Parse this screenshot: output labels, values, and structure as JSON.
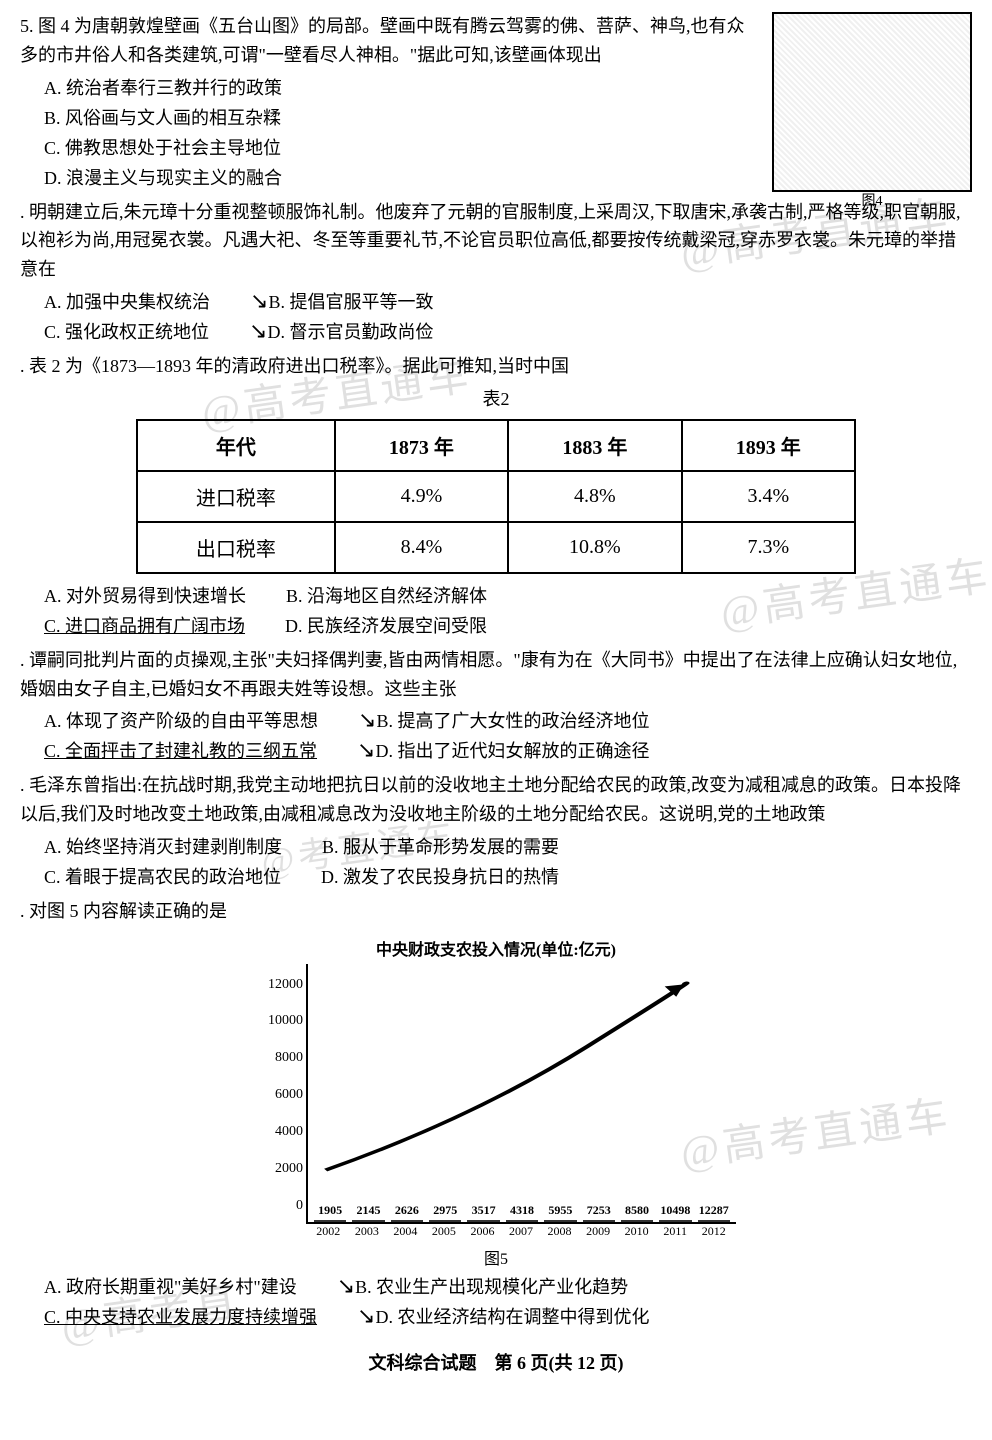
{
  "watermarks": {
    "w1": "@高考直通车",
    "w2": "@高考直通车",
    "w3": "@高考直通车",
    "w4": "@高考直通车",
    "w5": "@高考直"
  },
  "q6": {
    "text": "5. 图 4 为唐朝敦煌壁画《五台山图》的局部。壁画中既有腾云驾雾的佛、菩萨、神鸟,也有众多的市井俗人和各类建筑,可谓\"一壁看尽人神相。\"据此可知,该壁画体现出",
    "optA": "A. 统治者奉行三教并行的政策",
    "optB": "B. 风俗画与文人画的相互杂糅",
    "optC": "C. 佛教思想处于社会主导地位",
    "optD": "D. 浪漫主义与现实主义的融合",
    "figLabel": "图4"
  },
  "q7": {
    "text": ". 明朝建立后,朱元璋十分重视整顿服饰礼制。他废弃了元朝的官服制度,上采周汉,下取唐宋,承袭古制,严格等级,职官朝服,以袍衫为尚,用冠冕衣裳。凡遇大祀、冬至等重要礼节,不论官员职位高低,都要按传统戴梁冠,穿赤罗衣裳。朱元璋的举措意在",
    "optA": "A. 加强中央集权统治",
    "optB": "B. 提倡官服平等一致",
    "optC": "C. 强化政权正统地位",
    "optD": "D. 督示官员勤政尚俭"
  },
  "q8": {
    "text": ". 表 2 为《1873—1893 年的清政府进出口税率》。据此可推知,当时中国",
    "tableCaption": "表2",
    "table": {
      "columns": [
        "年代",
        "1873 年",
        "1883 年",
        "1893 年"
      ],
      "rows": [
        [
          "进口税率",
          "4.9%",
          "4.8%",
          "3.4%"
        ],
        [
          "出口税率",
          "8.4%",
          "10.8%",
          "7.3%"
        ]
      ],
      "border_color": "#000000",
      "cell_fontsize": 20
    },
    "optA": "A. 对外贸易得到快速增长",
    "optB": "B. 沿海地区自然经济解体",
    "optC": "C. 进口商品拥有广阔市场",
    "optD": "D. 民族经济发展空间受限"
  },
  "q9": {
    "text": ". 谭嗣同批判片面的贞操观,主张\"夫妇择偶判妻,皆由两情相愿。\"康有为在《大同书》中提出了在法律上应确认妇女地位,婚姻由女子自主,已婚妇女不再跟夫姓等设想。这些主张",
    "optA": "A. 体现了资产阶级的自由平等思想",
    "optB": "B. 提高了广大女性的政治经济地位",
    "optC": "C. 全面抨击了封建礼教的三纲五常",
    "optD": "D. 指出了近代妇女解放的正确途径"
  },
  "q10": {
    "text": ". 毛泽东曾指出:在抗战时期,我党主动地把抗日以前的没收地主土地分配给农民的政策,改变为减租减息的政策。日本投降以后,我们及时地改变土地政策,由减租减息改为没收地主阶级的土地分配给农民。这说明,党的土地政策",
    "optA": "A. 始终坚持消灭封建剥削制度",
    "optB": "B. 服从于革命形势发展的需要",
    "optC": "C. 着眼于提高农民的政治地位",
    "optD": "D. 激发了农民投身抗日的热情"
  },
  "q11": {
    "text": ". 对图 5 内容解读正确的是",
    "chart": {
      "type": "bar",
      "title": "中央财政支农投入情况(单位:亿元)",
      "categories": [
        "2002",
        "2003",
        "2004",
        "2005",
        "2006",
        "2007",
        "2008",
        "2009",
        "2010",
        "2011",
        "2012"
      ],
      "values": [
        1905,
        2145,
        2626,
        2975,
        3517,
        4318,
        5955,
        7253,
        8580,
        10498,
        12287
      ],
      "ylim": [
        0,
        14000
      ],
      "yticks": [
        0,
        2000,
        4000,
        6000,
        8000,
        10000,
        12000
      ],
      "bar_color": "#b0b0b0",
      "bar_border": "#333333",
      "background_color": "#ffffff",
      "title_fontsize": 16,
      "label_fontsize": 12,
      "value_label_fontsize": 12
    },
    "figCaption": "图5",
    "optA": "A. 政府长期重视\"美好乡村\"建设",
    "optB": "B. 农业生产出现规模化产业化趋势",
    "optC": "C. 中央支持农业发展力度持续增强",
    "optD": "D. 农业经济结构在调整中得到优化"
  },
  "footer": "文科综合试题　第 6 页(共 12 页)"
}
